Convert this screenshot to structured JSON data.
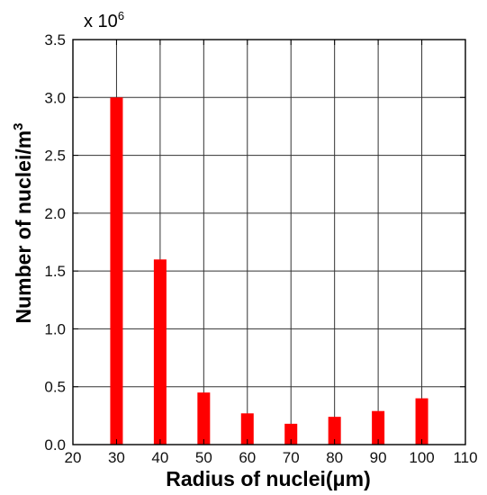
{
  "chart_data": {
    "type": "bar",
    "x": [
      30,
      40,
      50,
      60,
      70,
      80,
      90,
      100
    ],
    "values": [
      3.0,
      1.6,
      0.45,
      0.27,
      0.18,
      0.24,
      0.29,
      0.4
    ],
    "xlim": [
      20,
      110
    ],
    "xticks": [
      20,
      30,
      40,
      50,
      60,
      70,
      80,
      90,
      100,
      110
    ],
    "xtick_labels": [
      "20",
      "30",
      "40",
      "50",
      "60",
      "70",
      "80",
      "90",
      "100",
      "110"
    ],
    "ylim": [
      0,
      3.5
    ],
    "yticks": [
      0.0,
      0.5,
      1.0,
      1.5,
      2.0,
      2.5,
      3.0,
      3.5
    ],
    "ytick_labels": [
      "0.0",
      "0.5",
      "1.0",
      "1.5",
      "2.0",
      "2.5",
      "3.0",
      "3.5"
    ],
    "xlabel": "Radius of nuclei(μm)",
    "ylabel": "Number of nuclei/m",
    "ylabel_superscript": "3",
    "multiplier_base": "x 10",
    "multiplier_exponent": "6",
    "grid": true,
    "bar_color": "#ff0000"
  }
}
